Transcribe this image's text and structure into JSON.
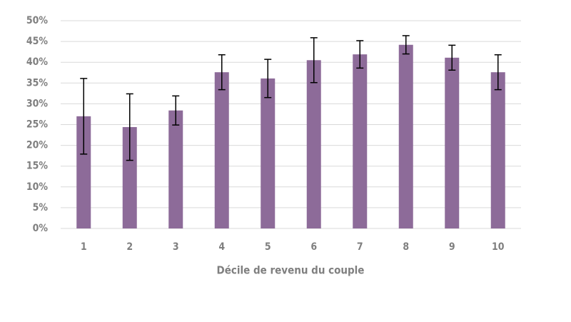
{
  "chart_data": {
    "type": "bar",
    "x_label": "Décile de revenu du couple",
    "categories": [
      "1",
      "2",
      "3",
      "4",
      "5",
      "6",
      "7",
      "8",
      "9",
      "10"
    ],
    "values": [
      27.0,
      24.4,
      28.4,
      37.6,
      36.1,
      40.5,
      41.9,
      44.2,
      41.1,
      37.6
    ],
    "errors": [
      9.1,
      8.0,
      3.5,
      4.2,
      4.6,
      5.4,
      3.3,
      2.2,
      3.0,
      4.2
    ],
    "color": "#8d6b99",
    "ylim": [
      0,
      50
    ],
    "yticks": [
      {
        "value": 0,
        "label": "0%"
      },
      {
        "value": 5,
        "label": "5%"
      },
      {
        "value": 10,
        "label": "10%"
      },
      {
        "value": 15,
        "label": "15%"
      },
      {
        "value": 20,
        "label": "20%"
      },
      {
        "value": 25,
        "label": "25%"
      },
      {
        "value": 30,
        "label": "30%"
      },
      {
        "value": 35,
        "label": "35%"
      },
      {
        "value": 40,
        "label": "40%"
      },
      {
        "value": 45,
        "label": "45%"
      },
      {
        "value": 50,
        "label": "50%"
      }
    ],
    "grid": true
  }
}
